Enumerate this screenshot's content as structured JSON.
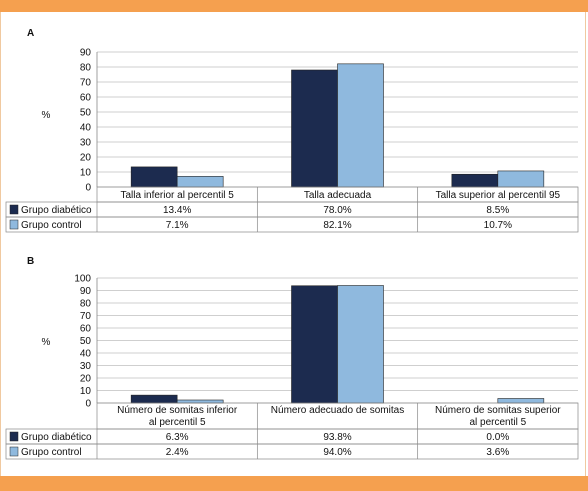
{
  "colors": {
    "frame": "#f5a04f",
    "diabetic": "#1c2b4f",
    "control": "#8fb9de",
    "grid": "#bfbfbf"
  },
  "chart_data": [
    {
      "panel": "A",
      "type": "bar",
      "ylabel": "%",
      "ylim": [
        0,
        90
      ],
      "yticks": [
        0,
        10,
        20,
        30,
        40,
        50,
        60,
        70,
        80,
        90
      ],
      "grid": true,
      "categories": [
        [
          "Talla inferior al percentil 5"
        ],
        [
          "Talla adecuada"
        ],
        [
          "Talla superior al percentil 95"
        ]
      ],
      "series": [
        {
          "name": "Grupo diabético",
          "values": [
            13.4,
            78.0,
            8.5
          ],
          "labels": [
            "13.4%",
            "78.0%",
            "8.5%"
          ]
        },
        {
          "name": "Grupo control",
          "values": [
            7.1,
            82.1,
            10.7
          ],
          "labels": [
            "7.1%",
            "82.1%",
            "10.7%"
          ]
        }
      ]
    },
    {
      "panel": "B",
      "type": "bar",
      "ylabel": "%",
      "ylim": [
        0,
        100
      ],
      "yticks": [
        0,
        10,
        20,
        30,
        40,
        50,
        60,
        70,
        80,
        90,
        100
      ],
      "grid": true,
      "categories": [
        [
          "Número de somitas inferior",
          "al percentil 5"
        ],
        [
          "Número adecuado de somitas"
        ],
        [
          "Número de somitas superior",
          "al percentil 5"
        ]
      ],
      "series": [
        {
          "name": "Grupo diabético",
          "values": [
            6.3,
            93.8,
            0.0
          ],
          "labels": [
            "6.3%",
            "93.8%",
            "0.0%"
          ]
        },
        {
          "name": "Grupo control",
          "values": [
            2.4,
            94.0,
            3.6
          ],
          "labels": [
            "2.4%",
            "94.0%",
            "3.6%"
          ]
        }
      ]
    }
  ]
}
